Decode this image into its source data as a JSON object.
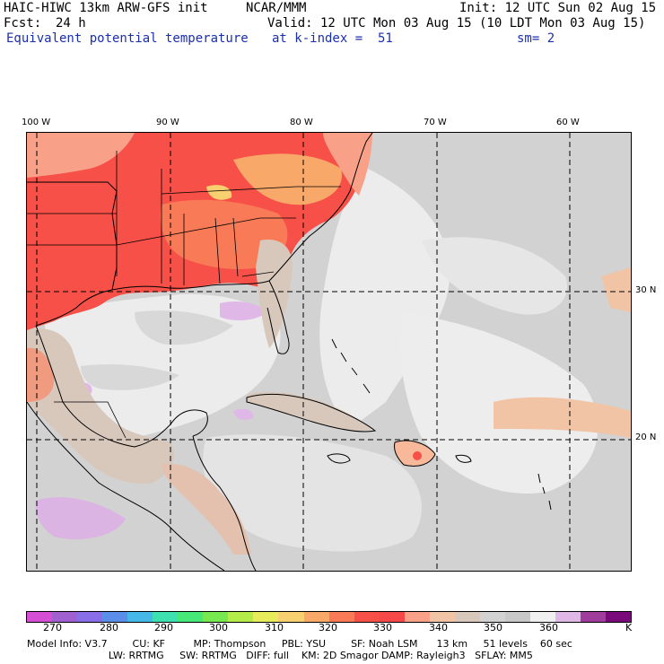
{
  "header": {
    "model": "HAIC-HIWC 13km ARW-GFS init",
    "center": "NCAR/MMM",
    "init": "Init: 12 UTC Sun 02 Aug 15",
    "fcst_label": "Fcst:",
    "fcst_value": "24 h",
    "valid": "Valid: 12 UTC Mon 03 Aug 15 (10 LDT Mon 03 Aug 15)",
    "field": "Equivalent potential temperature",
    "level": "at k-index =  51",
    "smoothing": "sm= 2"
  },
  "map": {
    "lon_labels": [
      "100 W",
      "90 W",
      "80 W",
      "70 W",
      "60 W"
    ],
    "lat_labels": [
      "30 N",
      "20 N"
    ]
  },
  "colorbar": {
    "colors": [
      "#d44fd4",
      "#a060d0",
      "#8a6ee8",
      "#5a8ee8",
      "#46b8e8",
      "#3ee0b0",
      "#46e878",
      "#78e850",
      "#b4ec4a",
      "#e8ec5a",
      "#f8d070",
      "#f8a868",
      "#f87a56",
      "#f65048",
      "#f64848",
      "#f8a088",
      "#f0c4a4",
      "#d8c8bc",
      "#d2d2d2",
      "#c8c8c8",
      "#f0f0f0",
      "#e0b8e8",
      "#a03c9c",
      "#7a0a7a"
    ],
    "labels": [
      "270",
      "280",
      "290",
      "300",
      "310",
      "320",
      "330",
      "340",
      "350",
      "360"
    ],
    "unit": "K"
  },
  "model_info": {
    "line1": "Model Info: V3.7        CU: KF         MP: Thompson     PBL: YSU        SF: Noah LSM      13 km     51 levels    60 sec",
    "line2": "                          LW: RRTMG     SW: RRTMG   DIFF: full    KM: 2D Smagor DAMP: Rayleigh3   SFLAY: MM5"
  }
}
